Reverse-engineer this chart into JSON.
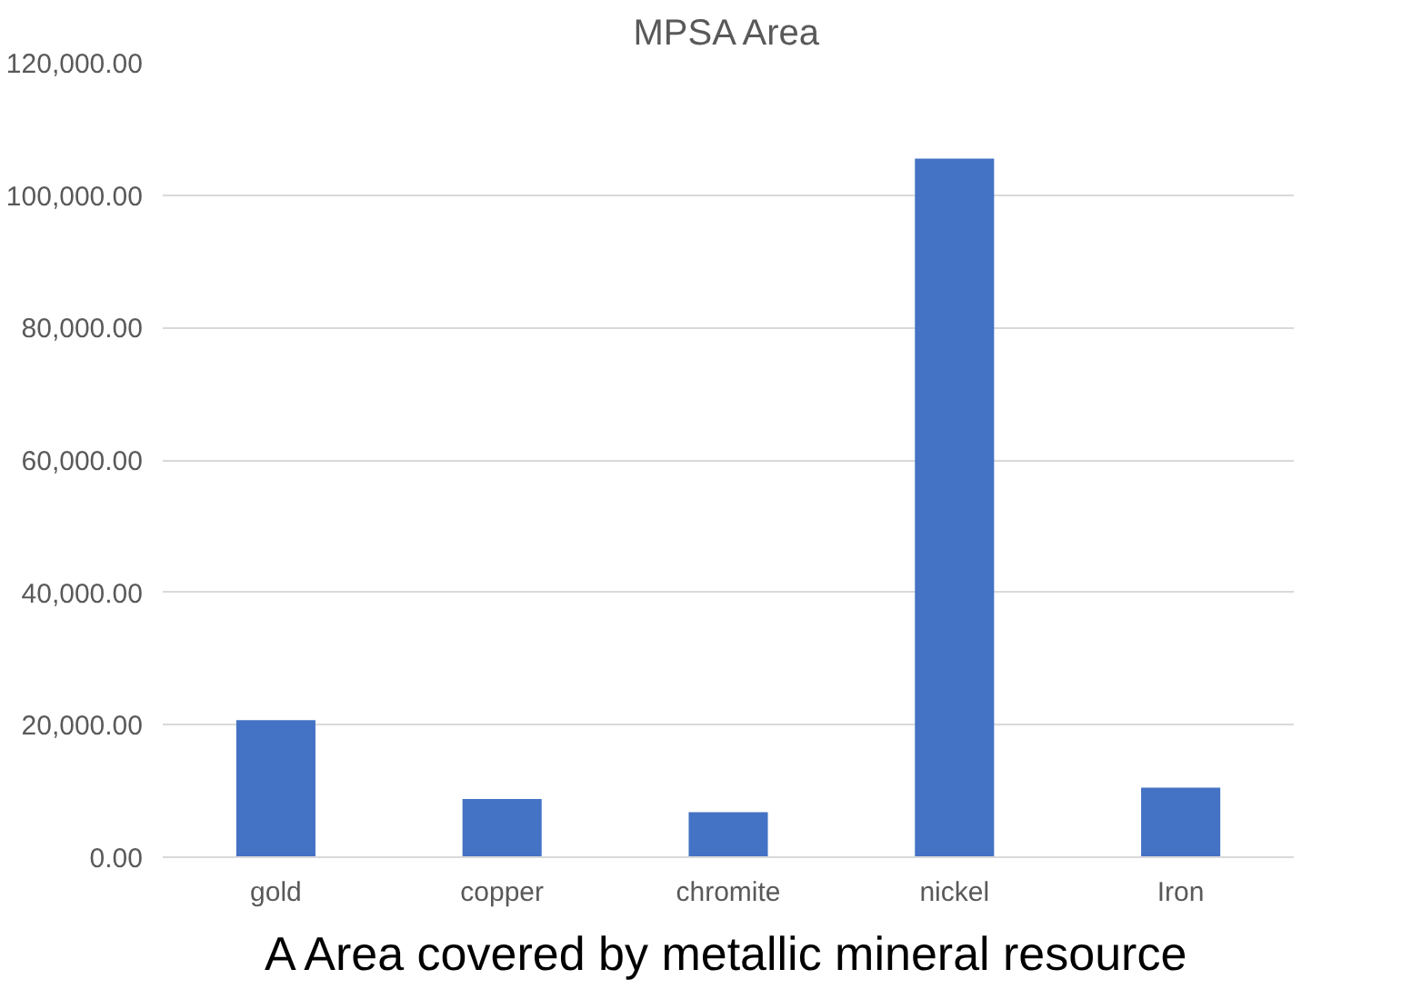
{
  "chart_data": {
    "type": "bar",
    "title": "MPSA Area",
    "categories": [
      "gold",
      "copper",
      "chromite",
      "nickel",
      "Iron"
    ],
    "values": [
      20700,
      8800,
      6800,
      105500,
      10500
    ],
    "color": "#4472c4",
    "ylim": [
      0,
      120000
    ],
    "yticks": [
      {
        "value": 0,
        "label": "0.00"
      },
      {
        "value": 20000,
        "label": "20,000.00"
      },
      {
        "value": 40000,
        "label": "40,000.00"
      },
      {
        "value": 60000,
        "label": "60,000.00"
      },
      {
        "value": 80000,
        "label": "80,000.00"
      },
      {
        "value": 100000,
        "label": "100,000.00"
      },
      {
        "value": 120000,
        "label": "120,000.00"
      }
    ],
    "grid": "y",
    "annotations": [
      "A Area covered by metallic mineral resource"
    ]
  }
}
